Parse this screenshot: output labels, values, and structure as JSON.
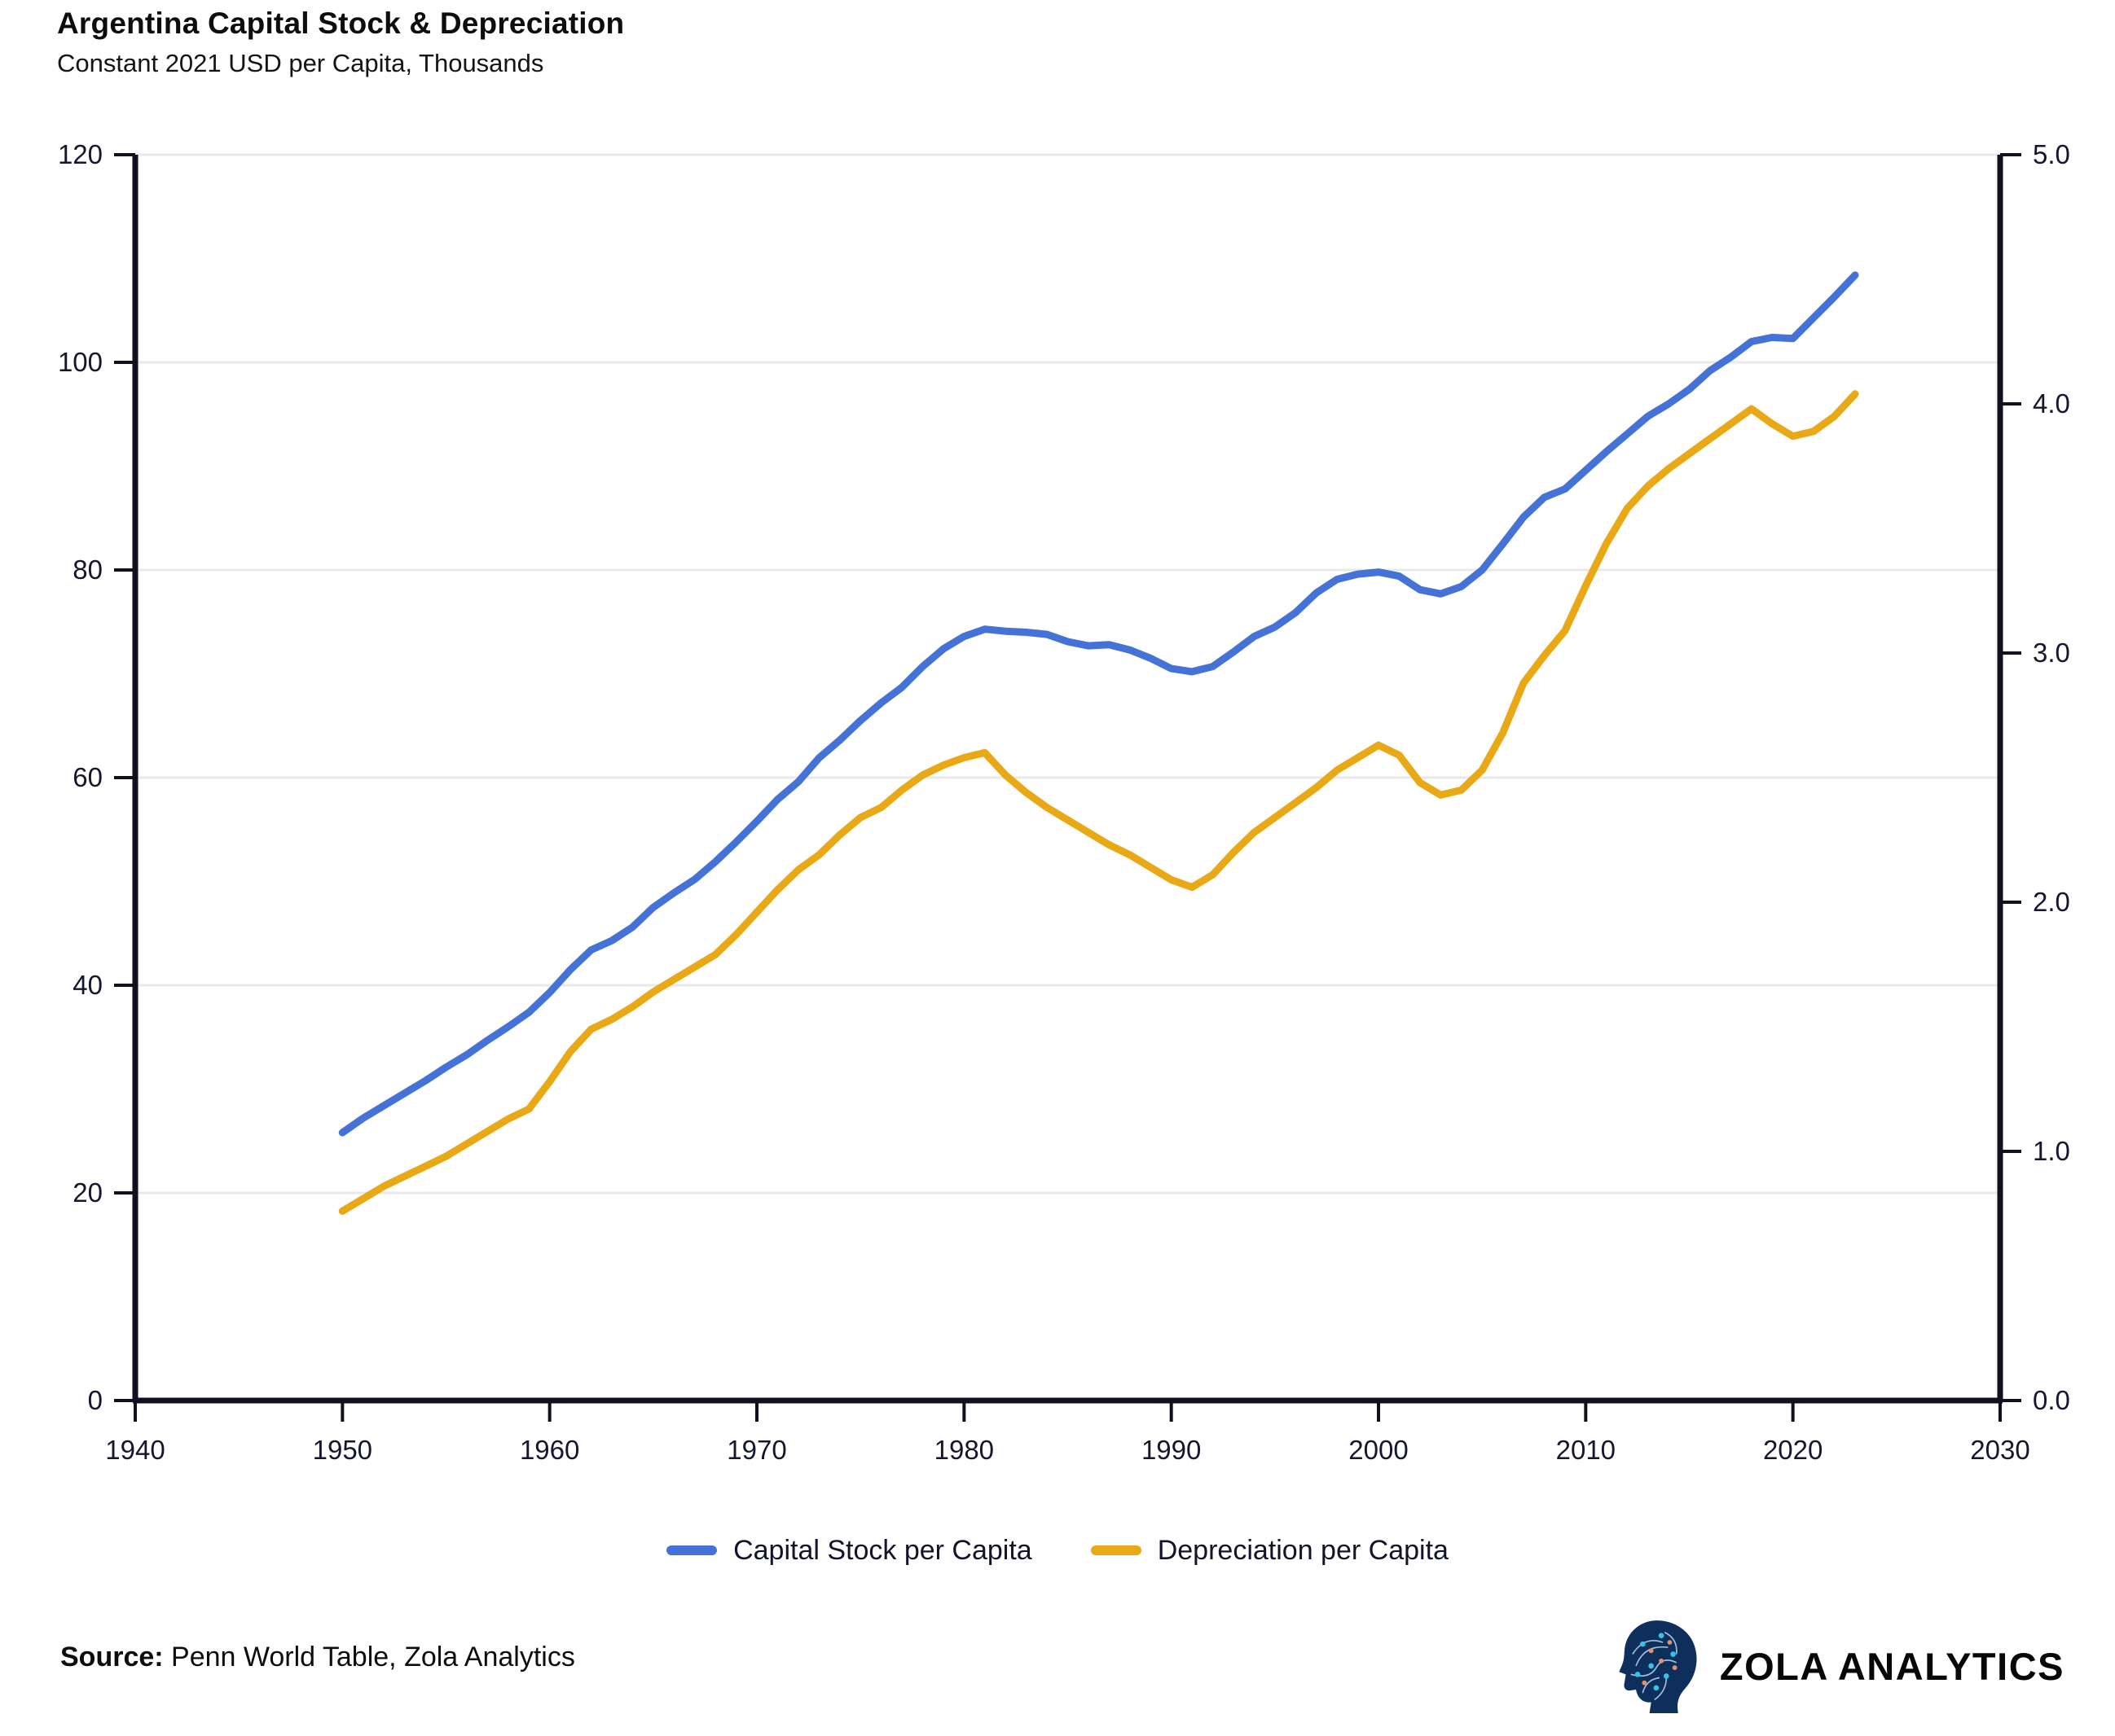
{
  "title": "Argentina Capital Stock & Depreciation",
  "subtitle": "Constant 2021 USD per Capita, Thousands",
  "source": {
    "label": "Source:",
    "text": " Penn World Table, Zola Analytics"
  },
  "logo": {
    "text": "ZOLA ANALYTICS",
    "icon": "circuit-head-icon"
  },
  "legend": [
    {
      "label": "Capital Stock per Capita",
      "color": "#4472D6"
    },
    {
      "label": "Depreciation per Capita",
      "color": "#E9A815"
    }
  ],
  "chart_data": {
    "type": "line",
    "title": "Argentina Capital Stock & Depreciation",
    "subtitle": "Constant 2021 USD per Capita, Thousands",
    "grid": true,
    "legend_position": "bottom",
    "x_axis": {
      "min": 1940,
      "max": 2030,
      "ticks": [
        1940,
        1950,
        1960,
        1970,
        1980,
        1990,
        2000,
        2010,
        2020,
        2030
      ]
    },
    "y_axis_left": {
      "min": 0,
      "max": 120,
      "ticks": [
        0,
        20,
        40,
        60,
        80,
        100,
        120
      ]
    },
    "y_axis_right": {
      "min": 0,
      "max": 5,
      "ticks": [
        0,
        1,
        2,
        3,
        4,
        5
      ],
      "tick_format": "one_decimal"
    },
    "x": [
      1950,
      1951,
      1952,
      1953,
      1954,
      1955,
      1956,
      1957,
      1958,
      1959,
      1960,
      1961,
      1962,
      1963,
      1964,
      1965,
      1966,
      1967,
      1968,
      1969,
      1970,
      1971,
      1972,
      1973,
      1974,
      1975,
      1976,
      1977,
      1978,
      1979,
      1980,
      1981,
      1982,
      1983,
      1984,
      1985,
      1986,
      1987,
      1988,
      1989,
      1990,
      1991,
      1992,
      1993,
      1994,
      1995,
      1996,
      1997,
      1998,
      1999,
      2000,
      2001,
      2002,
      2003,
      2004,
      2005,
      2006,
      2007,
      2008,
      2009,
      2010,
      2011,
      2012,
      2013,
      2014,
      2015,
      2016,
      2017,
      2018,
      2019,
      2020,
      2021,
      2022,
      2023
    ],
    "series": [
      {
        "name": "Capital Stock per Capita",
        "axis": "left",
        "color": "#4472D6",
        "values": [
          25.8,
          27.2,
          28.4,
          29.6,
          30.8,
          32.1,
          33.3,
          34.7,
          36.0,
          37.4,
          39.3,
          41.5,
          43.4,
          44.3,
          45.6,
          47.5,
          48.9,
          50.2,
          51.9,
          53.8,
          55.8,
          57.9,
          59.6,
          61.9,
          63.6,
          65.5,
          67.2,
          68.7,
          70.7,
          72.4,
          73.6,
          74.3,
          74.1,
          74.0,
          73.8,
          73.1,
          72.7,
          72.8,
          72.3,
          71.5,
          70.5,
          70.2,
          70.7,
          72.1,
          73.6,
          74.5,
          75.9,
          77.8,
          79.1,
          79.6,
          79.8,
          79.4,
          78.1,
          77.7,
          78.4,
          80.0,
          82.5,
          85.1,
          87.0,
          87.8,
          89.6,
          91.4,
          93.1,
          94.8,
          96.0,
          97.4,
          99.2,
          100.5,
          102.0,
          102.4,
          102.3,
          104.3,
          106.3,
          108.4
        ]
      },
      {
        "name": "Depreciation per Capita",
        "axis": "right",
        "color": "#E9A815",
        "values": [
          0.76,
          0.81,
          0.86,
          0.9,
          0.94,
          0.98,
          1.03,
          1.08,
          1.13,
          1.17,
          1.28,
          1.4,
          1.49,
          1.53,
          1.58,
          1.64,
          1.69,
          1.74,
          1.79,
          1.87,
          1.96,
          2.05,
          2.13,
          2.19,
          2.27,
          2.34,
          2.38,
          2.45,
          2.51,
          2.55,
          2.58,
          2.6,
          2.51,
          2.44,
          2.38,
          2.33,
          2.28,
          2.23,
          2.19,
          2.14,
          2.09,
          2.06,
          2.11,
          2.2,
          2.28,
          2.34,
          2.4,
          2.46,
          2.53,
          2.58,
          2.63,
          2.59,
          2.48,
          2.43,
          2.45,
          2.53,
          2.68,
          2.88,
          2.99,
          3.09,
          3.27,
          3.44,
          3.58,
          3.67,
          3.74,
          3.8,
          3.86,
          3.92,
          3.98,
          3.92,
          3.87,
          3.89,
          3.95,
          4.04
        ]
      }
    ]
  }
}
